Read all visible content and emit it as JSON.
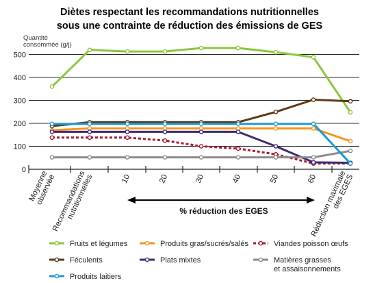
{
  "chart_data": {
    "type": "line",
    "title_line1": "Diètes  respectant les recommandations nutritionnelles",
    "title_line2": "sous une contrainte de réduction des émissions de GES",
    "ylabel_line1": "Quantité",
    "ylabel_line2": "consommée (g/j)",
    "xlabel": "% réduction des EGES",
    "ylim": [
      0,
      530
    ],
    "yticks": [
      0,
      100,
      200,
      300,
      400,
      500
    ],
    "categories": [
      {
        "lines": [
          "Moyenne",
          "observée"
        ],
        "rotated": true
      },
      {
        "lines": [
          "Recommandations",
          "nutritionnelles"
        ],
        "rotated": true
      },
      {
        "lines": [
          "10"
        ],
        "rotated": true
      },
      {
        "lines": [
          "20"
        ],
        "rotated": true
      },
      {
        "lines": [
          "30"
        ],
        "rotated": true
      },
      {
        "lines": [
          "40"
        ],
        "rotated": true
      },
      {
        "lines": [
          "50"
        ],
        "rotated": true
      },
      {
        "lines": [
          "60"
        ],
        "rotated": true
      },
      {
        "lines": [
          "Réduction maximale",
          "des EGES"
        ],
        "rotated": true
      }
    ],
    "grid": true,
    "legend_position": "bottom",
    "series": [
      {
        "name": "Fruits et légumes",
        "color": "#8cc63f",
        "style": "solid",
        "values": [
          360,
          520,
          513,
          513,
          528,
          528,
          510,
          488,
          248
        ]
      },
      {
        "name": "Produits gras/sucrés/salés",
        "color": "#f7941d",
        "style": "solid",
        "values": [
          170,
          178,
          178,
          178,
          178,
          178,
          178,
          178,
          122
        ]
      },
      {
        "name": "Viandes poisson œufs",
        "color": "#a6192e",
        "style": "dotted",
        "values": [
          138,
          138,
          138,
          125,
          100,
          90,
          65,
          25,
          25
        ]
      },
      {
        "name": "Féculents",
        "color": "#603813",
        "style": "solid",
        "values": [
          188,
          205,
          205,
          205,
          205,
          205,
          250,
          303,
          296
        ]
      },
      {
        "name": "Plats mixtes",
        "color": "#3d2a73",
        "style": "solid",
        "values": [
          163,
          163,
          163,
          163,
          163,
          163,
          100,
          30,
          28
        ]
      },
      {
        "name": "Matières grasses et assaisonnements",
        "name_lines": [
          "Matières grasses",
          "et assaisonnements"
        ],
        "color": "#8c8c8c",
        "style": "solid",
        "values": [
          52,
          52,
          52,
          52,
          52,
          52,
          52,
          52,
          80
        ]
      },
      {
        "name": "Produits laitiers",
        "color": "#1b9bd7",
        "style": "solid",
        "values": [
          198,
          198,
          198,
          198,
          198,
          198,
          198,
          198,
          25
        ]
      }
    ]
  }
}
